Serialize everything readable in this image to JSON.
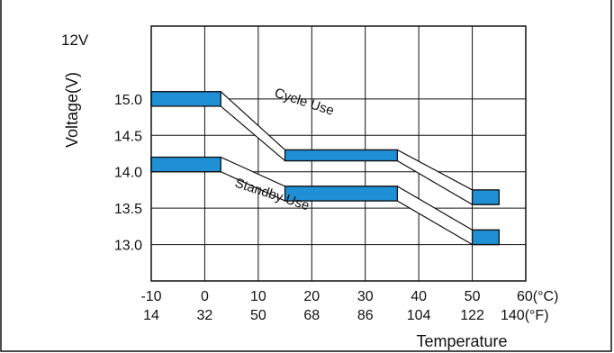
{
  "chart_data": {
    "type": "area",
    "title": "",
    "battery_label": "12V",
    "ylabel": "Voltage(V)",
    "xlabel": "Temperature",
    "x_unit_c": "(°C)",
    "x_unit_f": "(°F)",
    "xlim": [
      -10,
      60
    ],
    "ylim": [
      12.5,
      16.0
    ],
    "grid": true,
    "y_ticks": [
      {
        "value": 15.0,
        "label": "15.0"
      },
      {
        "value": 14.5,
        "label": "14.5"
      },
      {
        "value": 14.0,
        "label": "14.0"
      },
      {
        "value": 13.5,
        "label": "13.5"
      },
      {
        "value": 13.0,
        "label": "13.0"
      }
    ],
    "x_ticks": [
      {
        "c": -10,
        "c_label": "-10",
        "f_label": "14"
      },
      {
        "c": 0,
        "c_label": "0",
        "f_label": "32"
      },
      {
        "c": 10,
        "c_label": "10",
        "f_label": "50"
      },
      {
        "c": 20,
        "c_label": "20",
        "f_label": "68"
      },
      {
        "c": 30,
        "c_label": "30",
        "f_label": "86"
      },
      {
        "c": 40,
        "c_label": "40",
        "f_label": "104"
      },
      {
        "c": 50,
        "c_label": "50",
        "f_label": "122"
      },
      {
        "c": 60,
        "c_label": "60",
        "f_label": "140"
      }
    ],
    "series": [
      {
        "name": "Cycle Use",
        "color": "#1f8fd6",
        "points": [
          {
            "t": -10,
            "low": 14.9,
            "high": 15.1
          },
          {
            "t": 3,
            "low": 14.9,
            "high": 15.1
          },
          {
            "t": 15,
            "low": 14.15,
            "high": 14.3
          },
          {
            "t": 36,
            "low": 14.15,
            "high": 14.3
          },
          {
            "t": 50,
            "low": 13.55,
            "high": 13.75
          },
          {
            "t": 55,
            "low": 13.55,
            "high": 13.75
          }
        ]
      },
      {
        "name": "Standby Use",
        "color": "#1f8fd6",
        "points": [
          {
            "t": -10,
            "low": 14.0,
            "high": 14.2
          },
          {
            "t": 3,
            "low": 14.0,
            "high": 14.2
          },
          {
            "t": 15,
            "low": 13.6,
            "high": 13.8
          },
          {
            "t": 36,
            "low": 13.6,
            "high": 13.8
          },
          {
            "t": 50,
            "low": 13.0,
            "high": 13.2
          },
          {
            "t": 55,
            "low": 13.0,
            "high": 13.2
          }
        ]
      }
    ],
    "colors": {
      "band": "#1f8fd6",
      "line": "#111111",
      "grid": "#111111"
    }
  }
}
